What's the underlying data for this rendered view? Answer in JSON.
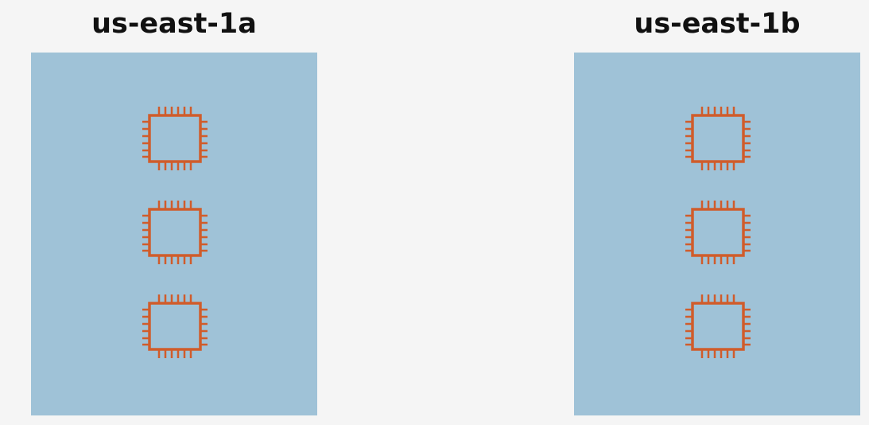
{
  "zones": [
    {
      "title": "us-east-1a",
      "fill": "#9fc2d7",
      "instance_count": 3,
      "instance_icon": "ec2-instance-chip-icon"
    },
    {
      "title": "us-east-1b",
      "fill": "#9fc2d7",
      "instance_count": 3,
      "instance_icon": "ec2-instance-chip-icon"
    }
  ],
  "colors": {
    "background": "#f5f5f5",
    "zone_fill": "#9fc2d7",
    "chip_stroke": "#d05c2b",
    "title_text": "#111111"
  }
}
